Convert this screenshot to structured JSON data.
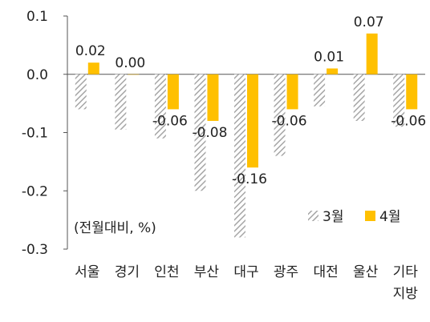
{
  "chart_data": {
    "type": "bar",
    "categories": [
      [
        "서울"
      ],
      [
        "경기"
      ],
      [
        "인천"
      ],
      [
        "부산"
      ],
      [
        "대구"
      ],
      [
        "광주"
      ],
      [
        "대전"
      ],
      [
        "울산"
      ],
      [
        "기타",
        "지방"
      ]
    ],
    "series": [
      {
        "name": "3월",
        "values": [
          -0.06,
          -0.095,
          -0.11,
          -0.2,
          -0.28,
          -0.14,
          -0.055,
          -0.08,
          -0.09
        ],
        "color": "#a6a6a6",
        "pattern": "hatch",
        "show_labels": false
      },
      {
        "name": "4월",
        "values": [
          0.02,
          0.0,
          -0.06,
          -0.08,
          -0.16,
          -0.06,
          0.01,
          0.07,
          -0.06
        ],
        "color": "#ffc000",
        "pattern": "solid",
        "show_labels": true
      }
    ],
    "data_labels": [
      "0.02",
      "0.00",
      "-0.06",
      "-0.08",
      "-0.16",
      "-0.06",
      "0.01",
      "0.07",
      "-0.06"
    ],
    "ylim": [
      -0.3,
      0.1
    ],
    "yticks": [
      "0.1",
      "0.0",
      "-0.1",
      "-0.2",
      "-0.3"
    ],
    "ytick_values": [
      0.1,
      0.0,
      -0.1,
      -0.2,
      -0.3
    ],
    "unit_note": "(전월대비, %)",
    "legend_position": "bottom-right",
    "grid": false
  }
}
